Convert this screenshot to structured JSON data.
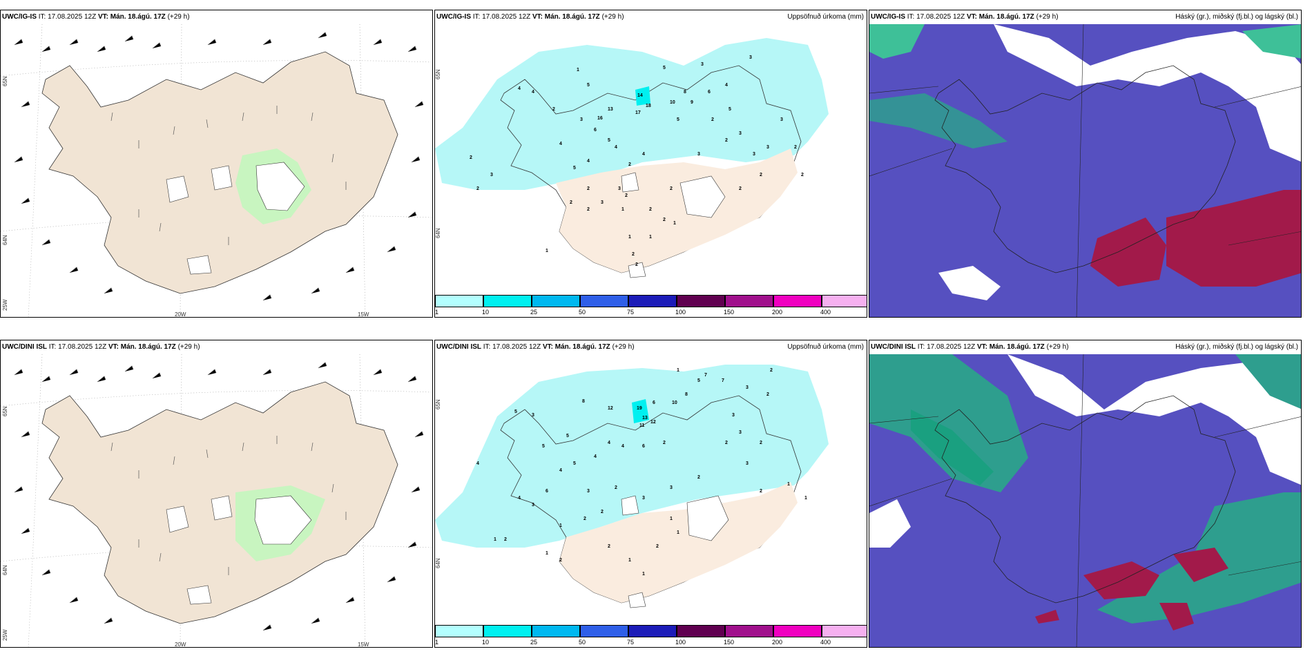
{
  "panels": {
    "top_wind": {
      "model": "UWC/IG-IS",
      "it_label": "IT:",
      "it_value": "17.08.2025 12Z",
      "vt_label": "VT:",
      "vt_value": "Mán. 18.ágú. 17Z",
      "lead": "(+29 h)",
      "lat_labels": [
        "65N",
        "64N",
        "25W"
      ],
      "lon_labels": [
        "20W",
        "15W"
      ]
    },
    "top_precip": {
      "model": "UWC/IG-IS",
      "it_label": "IT:",
      "it_value": "17.08.2025 12Z",
      "vt_label": "VT:",
      "vt_value": "Mán. 18.ágú. 17Z",
      "lead": "(+29 h)",
      "right_title": "Uppsöfnuð úrkoma (mm)",
      "lat_labels": [
        "65N",
        "64N"
      ]
    },
    "top_cloud": {
      "model": "UWC/IG-IS",
      "it_label": "IT:",
      "it_value": "17.08.2025 12Z",
      "vt_label": "VT:",
      "vt_value": "Mán. 18.ágú. 17Z",
      "lead": "(+29 h)",
      "right_title": "Háský (gr.), miðský (fj.bl.) og lágský (bl.)"
    },
    "bottom_wind": {
      "model": "UWC/DINI ISL",
      "it_label": "IT:",
      "it_value": "17.08.2025 12Z",
      "vt_label": "VT:",
      "vt_value": "Mán. 18.ágú. 17Z",
      "lead": "(+29 h)",
      "lat_labels": [
        "65N",
        "64N",
        "25W"
      ],
      "lon_labels": [
        "20W",
        "15W"
      ]
    },
    "bottom_precip": {
      "model": "UWC/DINI ISL",
      "it_label": "IT:",
      "it_value": "17.08.2025 12Z",
      "vt_label": "VT:",
      "vt_value": "Mán. 18.ágú. 17Z",
      "lead": "(+29 h)",
      "right_title": "Uppsöfnuð úrkoma (mm)",
      "lat_labels": [
        "65N",
        "64N"
      ]
    },
    "bottom_cloud": {
      "model": "UWC/DINI ISL",
      "it_label": "IT:",
      "it_value": "17.08.2025 12Z",
      "vt_label": "VT:",
      "vt_value": "Mán. 18.ágú. 17Z",
      "lead": "(+29 h)",
      "right_title": "Háský (gr.), miðský (fj.bl.) og lágský (bl.)"
    }
  },
  "precip_colorbar": {
    "ticks": [
      "1",
      "10",
      "25",
      "50",
      "75",
      "100",
      "150",
      "200",
      "400"
    ],
    "colors": [
      "#b3ffff",
      "#00f0f0",
      "#00b8f0",
      "#2f5fe8",
      "#1c1cb8",
      "#600050",
      "#a0108c",
      "#f000c0",
      "#f6b0f0"
    ]
  },
  "precip_values_top": [
    "1",
    "4",
    "4",
    "5",
    "3",
    "4",
    "3",
    "2",
    "2",
    "3",
    "2",
    "3",
    "5",
    "3",
    "6",
    "2",
    "2",
    "5",
    "3",
    "14",
    "13",
    "18",
    "17",
    "16",
    "10",
    "9",
    "5",
    "6",
    "5",
    "3",
    "8",
    "4",
    "2",
    "2",
    "3",
    "2",
    "2",
    "3",
    "4",
    "2",
    "4",
    "5",
    "4",
    "1",
    "2",
    "2",
    "1",
    "3",
    "2",
    "2",
    "2",
    "2",
    "3",
    "1",
    "1",
    "1",
    "2",
    "2",
    "2"
  ],
  "precip_values_bottom": [
    "1",
    "2",
    "5",
    "7",
    "3",
    "2",
    "3",
    "5",
    "8",
    "12",
    "19",
    "13",
    "11",
    "12",
    "10",
    "8",
    "6",
    "4",
    "3",
    "7",
    "2",
    "3",
    "2",
    "2",
    "4",
    "6",
    "4",
    "5",
    "5",
    "4",
    "3",
    "2",
    "1",
    "1",
    "3",
    "2",
    "3",
    "1",
    "2",
    "2",
    "3",
    "2",
    "1",
    "1",
    "1",
    "2",
    "1",
    "2",
    "2",
    "1",
    "1",
    "2",
    "4",
    "3",
    "6",
    "5",
    "4"
  ],
  "colors": {
    "land": "#f1e4d4",
    "land_green": "#c8f5c0",
    "precip_light": "#b6f7f7",
    "cloud_low": "#5650c0",
    "cloud_mid": "#2e9e8e",
    "cloud_high": "#a21a4a"
  }
}
